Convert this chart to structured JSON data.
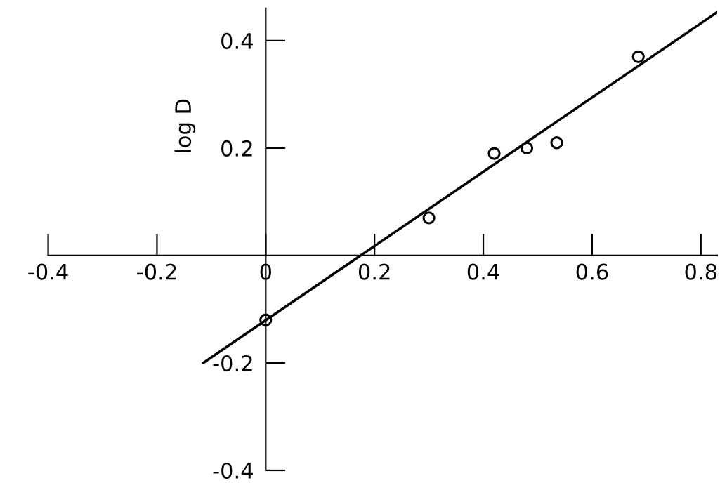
{
  "chart_data": {
    "type": "scatter",
    "ylabel": "log D",
    "xlim": [
      -0.4,
      0.83
    ],
    "ylim": [
      -0.4,
      0.46
    ],
    "xticks": [
      -0.4,
      -0.2,
      0,
      0.2,
      0.4,
      0.6,
      0.8
    ],
    "yticks": [
      -0.4,
      -0.2,
      0.2,
      0.4
    ],
    "series": [
      {
        "color": "#000000",
        "marker": "circle",
        "x": [
          0,
          0.3,
          0.42,
          0.48,
          0.535,
          0.685
        ],
        "values": [
          -0.12,
          0.07,
          0.19,
          0.2,
          0.21,
          0.37
        ]
      },
      {
        "type": "line",
        "color": "#000000",
        "line_style": "solid",
        "x": [
          -0.115,
          0.83
        ],
        "values": [
          -0.2,
          0.453
        ]
      }
    ]
  }
}
